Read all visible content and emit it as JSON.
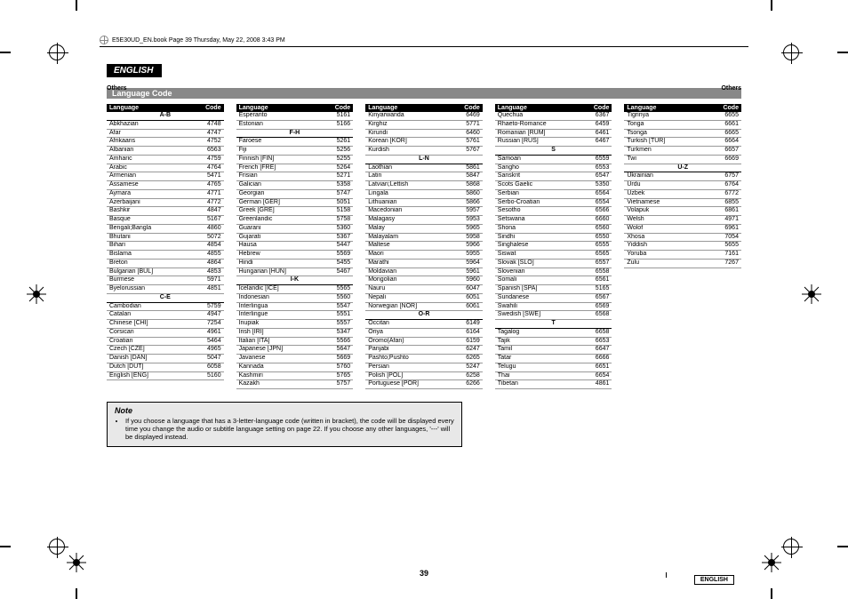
{
  "print": {
    "header_text": "E5E30UD_EN.book  Page 39  Thursday, May 22, 2008  3:43 PM"
  },
  "page": {
    "lang_tab": "ENGLISH",
    "others_label": "Others",
    "section_title": "Language Code",
    "page_number": "39",
    "footer_english": "ENGLISH"
  },
  "headers": {
    "language": "Language",
    "code": "Code"
  },
  "note": {
    "title": "Note",
    "bullet": "If you choose a language that has a 3-letter-language code (written in bracket), the code will be displayed every time you change the audio or subtitle language setting on page 22. If you choose any other languages, '---' will be displayed instead."
  },
  "columns": [
    [
      {
        "sec": "A-B"
      },
      {
        "l": "Abkhazian",
        "c": "4748"
      },
      {
        "l": "Afar",
        "c": "4747"
      },
      {
        "l": "Afrikaans",
        "c": "4752"
      },
      {
        "l": "Albanian",
        "c": "6563"
      },
      {
        "l": "Amharic",
        "c": "4759"
      },
      {
        "l": "Arabic",
        "c": "4764"
      },
      {
        "l": "Armenian",
        "c": "5471"
      },
      {
        "l": "Assamese",
        "c": "4765"
      },
      {
        "l": "Aymara",
        "c": "4771"
      },
      {
        "l": "Azerbaijani",
        "c": "4772"
      },
      {
        "l": "Bashkir",
        "c": "4847"
      },
      {
        "l": "Basque",
        "c": "5167"
      },
      {
        "l": "Bengali;Bangla",
        "c": "4860"
      },
      {
        "l": "Bhutani",
        "c": "5072"
      },
      {
        "l": "Bihari",
        "c": "4854"
      },
      {
        "l": "Bislama",
        "c": "4855"
      },
      {
        "l": "Breton",
        "c": "4864"
      },
      {
        "l": "Bulgarian [BUL]",
        "c": "4853"
      },
      {
        "l": "Burmese",
        "c": "5971"
      },
      {
        "l": "Byelorussian",
        "c": "4851"
      },
      {
        "sec": "C-E"
      },
      {
        "l": "Cambodian",
        "c": "5759"
      },
      {
        "l": "Catalan",
        "c": "4947"
      },
      {
        "l": "Chinese [CHI]",
        "c": "7254"
      },
      {
        "l": "Corsican",
        "c": "4961"
      },
      {
        "l": "Croatian",
        "c": "5464"
      },
      {
        "l": "Czech [CZE]",
        "c": "4965"
      },
      {
        "l": "Danish [DAN]",
        "c": "5047"
      },
      {
        "l": "Dutch [DUT]",
        "c": "6058"
      },
      {
        "l": "English [ENG]",
        "c": "5160"
      }
    ],
    [
      {
        "l": "Esperanto",
        "c": "5161"
      },
      {
        "l": "Estonian",
        "c": "5166"
      },
      {
        "sec": "F-H"
      },
      {
        "l": "Faroese",
        "c": "5261"
      },
      {
        "l": "Fiji",
        "c": "5256"
      },
      {
        "l": "Finnish [FIN]",
        "c": "5255"
      },
      {
        "l": "French [FRE]",
        "c": "5264"
      },
      {
        "l": "Frisian",
        "c": "5271"
      },
      {
        "l": "Galician",
        "c": "5358"
      },
      {
        "l": "Georgian",
        "c": "5747"
      },
      {
        "l": "German [GER]",
        "c": "5051"
      },
      {
        "l": "Greek [GRE]",
        "c": "5158"
      },
      {
        "l": "Greenlandic",
        "c": "5758"
      },
      {
        "l": "Guarani",
        "c": "5360"
      },
      {
        "l": "Gujarati",
        "c": "5367"
      },
      {
        "l": "Hausa",
        "c": "5447"
      },
      {
        "l": "Hebrew",
        "c": "5569"
      },
      {
        "l": "Hindi",
        "c": "5455"
      },
      {
        "l": "Hungarian [HUN]",
        "c": "5467"
      },
      {
        "sec": "I-K"
      },
      {
        "l": "Icelandic [ICE]",
        "c": "5565"
      },
      {
        "l": "Indonesian",
        "c": "5560"
      },
      {
        "l": "Interlingua",
        "c": "5547"
      },
      {
        "l": "Interlingue",
        "c": "5551"
      },
      {
        "l": "Inupiak",
        "c": "5557"
      },
      {
        "l": "Irish [IRI]",
        "c": "5347"
      },
      {
        "l": "Italian [ITA]",
        "c": "5566"
      },
      {
        "l": "Japanese [JPN]",
        "c": "5647"
      },
      {
        "l": "Javanese",
        "c": "5669"
      },
      {
        "l": "Kannada",
        "c": "5760"
      },
      {
        "l": "Kashmiri",
        "c": "5765"
      },
      {
        "l": "Kazakh",
        "c": "5757"
      }
    ],
    [
      {
        "l": "Kinyarwanda",
        "c": "6469"
      },
      {
        "l": "Kirghiz",
        "c": "5771"
      },
      {
        "l": "Kirundi",
        "c": "6460"
      },
      {
        "l": "Korean [KOR]",
        "c": "5761"
      },
      {
        "l": "Kurdish",
        "c": "5767"
      },
      {
        "sec": "L-N"
      },
      {
        "l": "Laothian",
        "c": "5861"
      },
      {
        "l": "Latin",
        "c": "5847"
      },
      {
        "l": "Latvian;Lettish",
        "c": "5868"
      },
      {
        "l": "Lingala",
        "c": "5860"
      },
      {
        "l": "Lithuanian",
        "c": "5866"
      },
      {
        "l": "Macedonian",
        "c": "5957"
      },
      {
        "l": "Malagasy",
        "c": "5953"
      },
      {
        "l": "Malay",
        "c": "5965"
      },
      {
        "l": "Malayalam",
        "c": "5958"
      },
      {
        "l": "Maltese",
        "c": "5966"
      },
      {
        "l": "Maori",
        "c": "5955"
      },
      {
        "l": "Marathi",
        "c": "5964"
      },
      {
        "l": "Moldavian",
        "c": "5961"
      },
      {
        "l": "Mongolian",
        "c": "5960"
      },
      {
        "l": "Nauru",
        "c": "6047"
      },
      {
        "l": "Nepali",
        "c": "6051"
      },
      {
        "l": "Norwegian [NOR]",
        "c": "6061"
      },
      {
        "sec": "O-R"
      },
      {
        "l": "Occitan",
        "c": "6149"
      },
      {
        "l": "Oriya",
        "c": "6164"
      },
      {
        "l": "Oromo(Afan)",
        "c": "6159"
      },
      {
        "l": "Panjabi",
        "c": "6247"
      },
      {
        "l": "Pashto;Pushto",
        "c": "6265"
      },
      {
        "l": "Persian",
        "c": "5247"
      },
      {
        "l": "Polish [POL]",
        "c": "6258"
      },
      {
        "l": "Portuguese [POR]",
        "c": "6266"
      }
    ],
    [
      {
        "l": "Quechua",
        "c": "6367"
      },
      {
        "l": "Rhaeto-Romance",
        "c": "6459"
      },
      {
        "l": "Romanian [RUM]",
        "c": "6461"
      },
      {
        "l": "Russian [RUS]",
        "c": "6467"
      },
      {
        "sec": "S"
      },
      {
        "l": "Samoan",
        "c": "6559"
      },
      {
        "l": "Sangho",
        "c": "6553"
      },
      {
        "l": "Sanskrit",
        "c": "6547"
      },
      {
        "l": "Scots Gaelic",
        "c": "5350"
      },
      {
        "l": "Serbian",
        "c": "6564"
      },
      {
        "l": "Serbo-Croatian",
        "c": "6554"
      },
      {
        "l": "Sesotho",
        "c": "6566"
      },
      {
        "l": "Setswana",
        "c": "6660"
      },
      {
        "l": "Shona",
        "c": "6560"
      },
      {
        "l": "Sindhi",
        "c": "6550"
      },
      {
        "l": "Singhalese",
        "c": "6555"
      },
      {
        "l": "Siswat",
        "c": "6565"
      },
      {
        "l": "Slovak [SLO]",
        "c": "6557"
      },
      {
        "l": "Slovenian",
        "c": "6558"
      },
      {
        "l": "Somali",
        "c": "6561"
      },
      {
        "l": "Spanish [SPA]",
        "c": "5165"
      },
      {
        "l": "Sundanese",
        "c": "6567"
      },
      {
        "l": "Swahili",
        "c": "6569"
      },
      {
        "l": "Swedish [SWE]",
        "c": "6568"
      },
      {
        "sec": "T"
      },
      {
        "l": "Tagalog",
        "c": "6658"
      },
      {
        "l": "Tajik",
        "c": "6653"
      },
      {
        "l": "Tamil",
        "c": "6647"
      },
      {
        "l": "Tatar",
        "c": "6666"
      },
      {
        "l": "Telugu",
        "c": "6651"
      },
      {
        "l": "Thai",
        "c": "6654"
      },
      {
        "l": "Tibetan",
        "c": "4861"
      }
    ],
    [
      {
        "l": "Tigrinya",
        "c": "6655"
      },
      {
        "l": "Tonga",
        "c": "6661"
      },
      {
        "l": "Tsonga",
        "c": "6665"
      },
      {
        "l": "Turkish [TUR]",
        "c": "6664"
      },
      {
        "l": "Turkmen",
        "c": "6657"
      },
      {
        "l": "Twi",
        "c": "6669"
      },
      {
        "sec": "U-Z"
      },
      {
        "l": "Ukrainian",
        "c": "6757"
      },
      {
        "l": "Urdu",
        "c": "6764"
      },
      {
        "l": "Uzbek",
        "c": "6772"
      },
      {
        "l": "Vietnamese",
        "c": "6855"
      },
      {
        "l": "Volapuk",
        "c": "6861"
      },
      {
        "l": "Welsh",
        "c": "4971"
      },
      {
        "l": "Wolof",
        "c": "6961"
      },
      {
        "l": "Xhosa",
        "c": "7054"
      },
      {
        "l": "Yiddish",
        "c": "5655"
      },
      {
        "l": "Yoruba",
        "c": "7161"
      },
      {
        "l": "Zulu",
        "c": "7267"
      }
    ]
  ]
}
